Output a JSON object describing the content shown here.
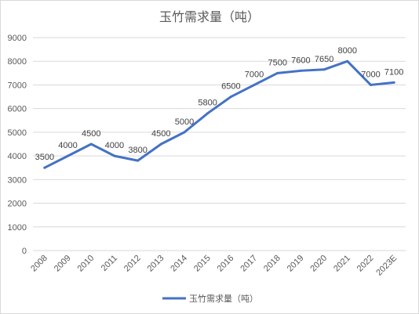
{
  "chart_data": {
    "type": "line",
    "title": "玉竹需求量（吨）",
    "categories": [
      "2008",
      "2009",
      "2010",
      "2011",
      "2012",
      "2013",
      "2014",
      "2015",
      "2016",
      "2017",
      "2018",
      "2019",
      "2020",
      "2021",
      "2022",
      "2023E"
    ],
    "series": [
      {
        "name": "玉竹需求量（吨）",
        "color": "#4472c4",
        "values": [
          3500,
          4000,
          4500,
          4000,
          3800,
          4500,
          5000,
          5800,
          6500,
          7000,
          7500,
          7600,
          7650,
          8000,
          7000,
          7100
        ],
        "labels": [
          "3500",
          "4000",
          "4500",
          "4000",
          "3800",
          "4500",
          "5000",
          "5800",
          "6500",
          "7000",
          "7500",
          "7600",
          "7650",
          "8000",
          "7000",
          "7100"
        ]
      }
    ],
    "yticks": [
      "0",
      "1000",
      "2000",
      "3000",
      "4000",
      "5000",
      "6000",
      "7000",
      "8000",
      "9000"
    ],
    "ylim": [
      0,
      9000
    ],
    "grid": true,
    "legend": "bottom"
  }
}
